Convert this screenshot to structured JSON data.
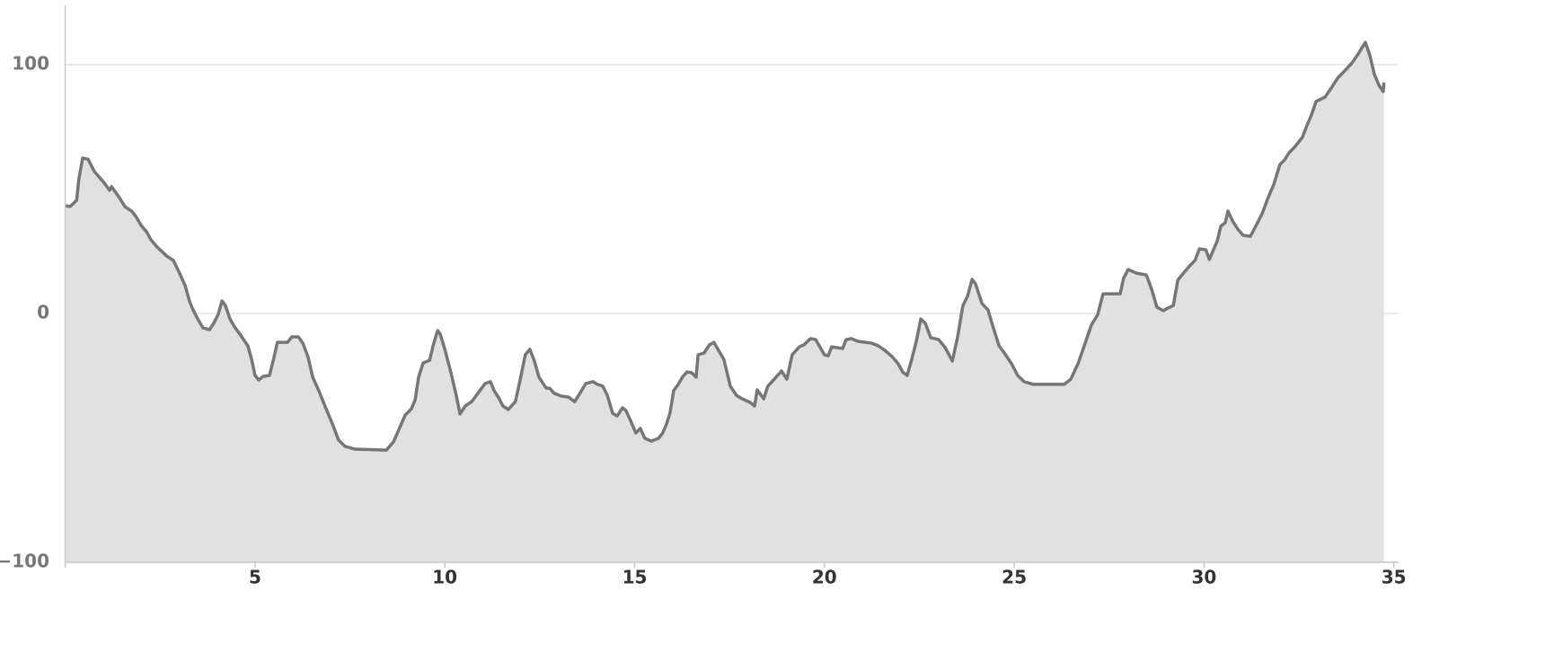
{
  "chart_data": {
    "type": "area",
    "x": [
      0,
      0.13,
      0.3,
      0.36,
      0.46,
      0.6,
      0.77,
      1.0,
      1.17,
      1.22,
      1.43,
      1.57,
      1.76,
      1.88,
      2.0,
      2.14,
      2.26,
      2.42,
      2.54,
      2.68,
      2.85,
      3.02,
      3.16,
      3.28,
      3.37,
      3.49,
      3.63,
      3.8,
      3.91,
      4.03,
      4.13,
      4.22,
      4.34,
      4.48,
      4.62,
      4.81,
      4.91,
      5.0,
      5.1,
      5.21,
      5.38,
      5.5,
      5.59,
      5.86,
      5.97,
      6.14,
      6.26,
      6.4,
      6.52,
      6.68,
      6.85,
      7.04,
      7.2,
      7.37,
      7.63,
      8.46,
      8.65,
      8.79,
      8.96,
      9.12,
      9.22,
      9.31,
      9.43,
      9.6,
      9.69,
      9.81,
      9.88,
      10.0,
      10.16,
      10.3,
      10.4,
      10.54,
      10.71,
      10.87,
      11.06,
      11.2,
      11.3,
      11.42,
      11.53,
      11.67,
      11.86,
      12.0,
      12.12,
      12.24,
      12.36,
      12.48,
      12.67,
      12.76,
      12.88,
      13.07,
      13.26,
      13.42,
      13.57,
      13.71,
      13.9,
      14.02,
      14.16,
      14.28,
      14.42,
      14.54,
      14.68,
      14.77,
      14.89,
      15.03,
      15.15,
      15.27,
      15.44,
      15.63,
      15.74,
      15.84,
      15.93,
      16.03,
      16.15,
      16.26,
      16.38,
      16.5,
      16.62,
      16.67,
      16.83,
      16.97,
      17.09,
      17.21,
      17.35,
      17.52,
      17.68,
      17.83,
      18.04,
      18.16,
      18.23,
      18.4,
      18.51,
      18.68,
      18.87,
      19.01,
      19.15,
      19.34,
      19.46,
      19.63,
      19.77,
      20.0,
      20.1,
      20.19,
      20.48,
      20.57,
      20.71,
      20.88,
      21.24,
      21.42,
      21.59,
      21.78,
      21.94,
      22.06,
      22.18,
      22.3,
      22.42,
      22.54,
      22.66,
      22.8,
      23.01,
      23.18,
      23.37,
      23.51,
      23.65,
      23.77,
      23.89,
      23.98,
      24.15,
      24.31,
      24.45,
      24.6,
      24.74,
      24.93,
      25.09,
      25.26,
      25.5,
      26.32,
      26.49,
      26.68,
      26.87,
      27.03,
      27.2,
      27.34,
      27.79,
      27.88,
      28.0,
      28.22,
      28.48,
      28.62,
      28.76,
      28.93,
      29.05,
      29.19,
      29.31,
      29.48,
      29.62,
      29.76,
      29.88,
      30.05,
      30.14,
      30.23,
      30.35,
      30.44,
      30.56,
      30.63,
      30.75,
      30.89,
      31.03,
      31.22,
      31.36,
      31.53,
      31.69,
      31.84,
      32.0,
      32.12,
      32.24,
      32.4,
      32.59,
      32.71,
      32.83,
      32.95,
      33.19,
      33.35,
      33.52,
      33.68,
      33.9,
      34.06,
      34.25,
      34.37,
      34.49,
      34.61,
      34.72,
      34.74
    ],
    "values": [
      43.3,
      43,
      45.5,
      54,
      62.5,
      62,
      57,
      53,
      49.5,
      51,
      46.5,
      43,
      41,
      38.6,
      35.4,
      32.9,
      29.6,
      26.7,
      25,
      23,
      21.3,
      15.9,
      11.2,
      4.7,
      1.4,
      -2.2,
      -5.8,
      -6.5,
      -4,
      -0.4,
      5,
      3.2,
      -2.2,
      -5.8,
      -8.7,
      -13,
      -18.4,
      -24.9,
      -26.7,
      -25.3,
      -24.9,
      -17.7,
      -11.6,
      -11.6,
      -9.4,
      -9.4,
      -11.9,
      -17.7,
      -25.6,
      -31,
      -37.5,
      -44.4,
      -50.9,
      -53.4,
      -54.5,
      -54.9,
      -51.6,
      -46.6,
      -40.8,
      -38.3,
      -34.7,
      -25.6,
      -19.9,
      -18.8,
      -13,
      -6.9,
      -8.3,
      -14.4,
      -23.8,
      -32.9,
      -40.4,
      -37.2,
      -35.4,
      -32.1,
      -28.2,
      -27.4,
      -31,
      -33.9,
      -37.2,
      -38.6,
      -35.4,
      -25.6,
      -16.6,
      -14.4,
      -19.1,
      -25.6,
      -30,
      -30,
      -32.1,
      -33.2,
      -33.6,
      -35.4,
      -31.8,
      -28.2,
      -27.4,
      -28.5,
      -29.2,
      -32.9,
      -40.1,
      -41.2,
      -37.9,
      -39,
      -43,
      -48,
      -46.2,
      -50.2,
      -51.3,
      -50.2,
      -48,
      -44.4,
      -40.1,
      -31,
      -28.5,
      -25.6,
      -23.5,
      -23.8,
      -25.6,
      -16.6,
      -15.9,
      -12.6,
      -11.6,
      -14.8,
      -18.4,
      -29.2,
      -32.9,
      -34.3,
      -35.7,
      -37.2,
      -30.7,
      -34.3,
      -29.2,
      -26.4,
      -23.1,
      -26.4,
      -16.6,
      -13.4,
      -12.6,
      -10.1,
      -10.5,
      -16.6,
      -17,
      -13.4,
      -14.1,
      -10.5,
      -10.1,
      -11.2,
      -11.9,
      -13,
      -14.8,
      -17.3,
      -20.2,
      -23.5,
      -24.9,
      -18.4,
      -11.2,
      -2.2,
      -4,
      -9.7,
      -10.5,
      -13.7,
      -19.1,
      -9.4,
      3.2,
      6.9,
      13.7,
      11.9,
      4,
      1.4,
      -5.8,
      -13,
      -15.9,
      -20.2,
      -24.9,
      -27.4,
      -28.5,
      -28.5,
      -26.4,
      -20.2,
      -11.9,
      -4.7,
      -0.4,
      7.9,
      7.9,
      14.1,
      17.7,
      16.2,
      15.5,
      9.7,
      2.5,
      1.1,
      2.2,
      3.2,
      13.4,
      16.6,
      19.1,
      21.3,
      26,
      25.6,
      21.7,
      24.9,
      29.2,
      35,
      36.5,
      41.2,
      37.2,
      33.9,
      31.4,
      31,
      35,
      40.1,
      46.6,
      52,
      59.9,
      61.7,
      64.6,
      67.1,
      70.8,
      75.5,
      79.8,
      85.2,
      87,
      90.6,
      94.6,
      97.1,
      100.7,
      104.3,
      109,
      103.6,
      96,
      91.7,
      89.2,
      92.8
    ],
    "color": "#767676",
    "fill": "#e1e1e1",
    "xlim": [
      0,
      35
    ],
    "xticks": [
      5,
      10,
      15,
      20,
      25,
      30,
      35
    ],
    "ylim": [
      -100,
      124
    ],
    "yticks": [
      {
        "value": -100,
        "label": "−100"
      },
      0,
      100
    ],
    "grid": true
  }
}
